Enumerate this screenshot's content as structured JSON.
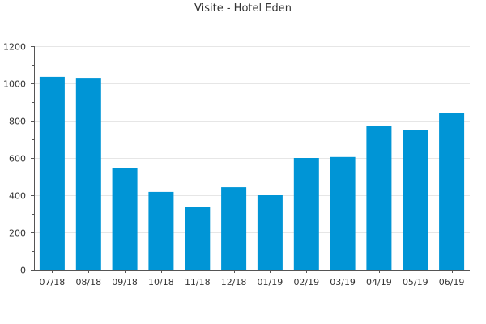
{
  "chart_data": {
    "type": "bar",
    "title": "Visite - Hotel Eden",
    "xlabel": "",
    "ylabel": "",
    "categories": [
      "07/18",
      "08/18",
      "09/18",
      "10/18",
      "11/18",
      "12/18",
      "01/19",
      "02/19",
      "03/19",
      "04/19",
      "05/19",
      "06/19"
    ],
    "values": [
      1035,
      1030,
      548,
      418,
      335,
      443,
      400,
      600,
      605,
      770,
      748,
      843
    ],
    "ylim": [
      0,
      1200
    ],
    "yticks": [
      0,
      200,
      400,
      600,
      800,
      1000,
      1200
    ],
    "grid": true,
    "legend": "none",
    "colors": {
      "bar": "#0095d6",
      "axis": "#555555",
      "grid": "#e6e6e6",
      "text": "#333333"
    }
  }
}
